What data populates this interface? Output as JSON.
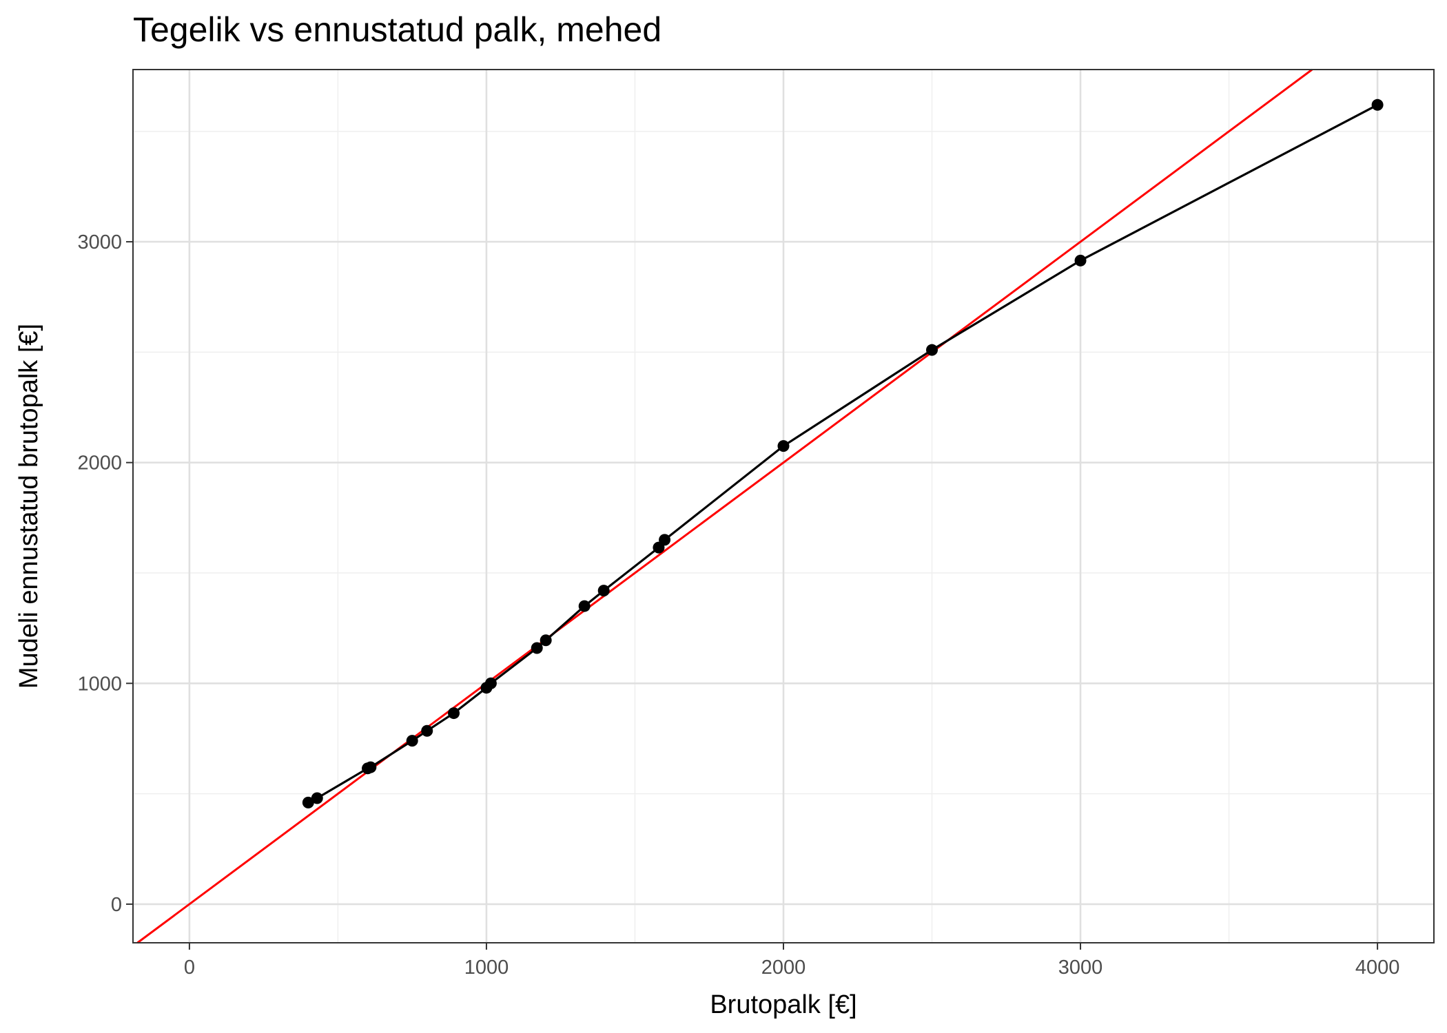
{
  "chart_data": {
    "type": "scatter",
    "title": "Tegelik vs ennustatud palk, mehed",
    "xlabel": "Brutopalk [€]",
    "ylabel": "Mudeli ennustatud brutopalk [€]",
    "xlim": [
      -190,
      4190
    ],
    "ylim": [
      -175,
      3780
    ],
    "x_ticks": [
      0,
      1000,
      2000,
      3000,
      4000
    ],
    "y_ticks": [
      0,
      1000,
      2000,
      3000
    ],
    "x_tick_labels": [
      "0",
      "1000",
      "2000",
      "3000",
      "4000"
    ],
    "y_tick_labels": [
      "0",
      "1000",
      "2000",
      "3000"
    ],
    "grid": true,
    "series": [
      {
        "x": [
          400,
          430,
          600,
          610,
          750,
          800,
          890,
          1000,
          1015,
          1170,
          1200,
          1330,
          1395,
          1580,
          1600,
          2000,
          2500,
          3000,
          4000
        ],
        "y": [
          460,
          480,
          615,
          620,
          740,
          785,
          865,
          980,
          1000,
          1160,
          1195,
          1350,
          1420,
          1615,
          1650,
          2075,
          2510,
          2915,
          3620
        ],
        "color": "#000000",
        "style": "line+points"
      }
    ],
    "reference_line": {
      "type": "identity",
      "slope": 1,
      "intercept": 0,
      "color": "#ff0000"
    }
  }
}
